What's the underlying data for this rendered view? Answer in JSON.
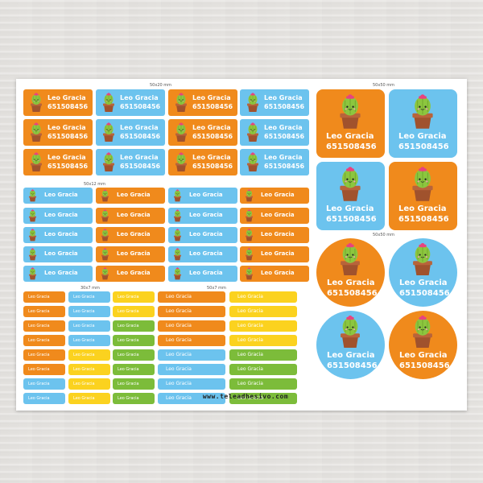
{
  "sheet": {
    "dims": {
      "a": "50x20 mm",
      "b": "50x50 mm",
      "c": "50x12 mm",
      "d": "50x50 mm",
      "e": "30x7 mm",
      "f": "50x7 mm"
    },
    "label_name": "Leo Gracia",
    "label_code": "651508456",
    "website": "www.teleadhesivo.com"
  },
  "colors": {
    "orange": "#f08a1c",
    "blue": "#6cc3ee",
    "yellow": "#fbd21f",
    "green": "#7cbc3a",
    "cactus_green": "#8cc63f",
    "pot_brown": "#a0522d",
    "flower_pink": "#e8437e"
  },
  "icons": [
    "cactus-icon"
  ]
}
